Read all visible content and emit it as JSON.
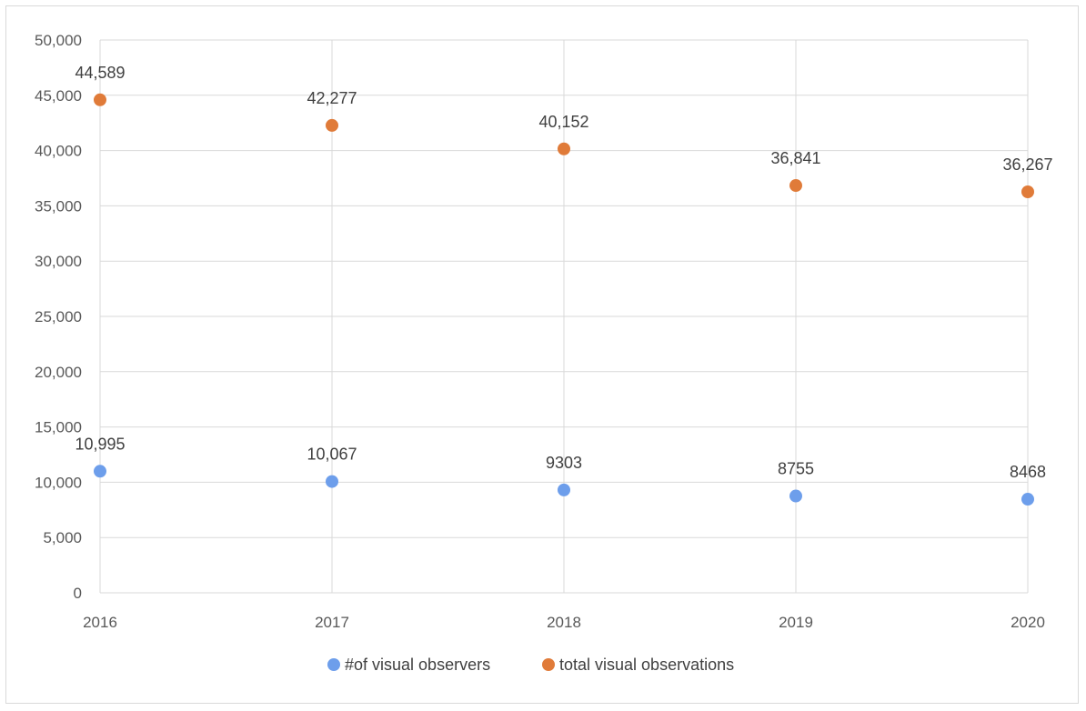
{
  "chart_data": {
    "type": "scatter",
    "x": [
      2016,
      2017,
      2018,
      2019,
      2020
    ],
    "x_tick_labels": [
      "2016",
      "2017",
      "2018",
      "2019",
      "2020"
    ],
    "xlim": [
      2016,
      2020
    ],
    "ylim": [
      0,
      50000
    ],
    "y_tick_labels": [
      "0",
      "5,000",
      "10,000",
      "15,000",
      "20,000",
      "25,000",
      "30,000",
      "35,000",
      "40,000",
      "45,000",
      "50,000"
    ],
    "y_ticks": [
      0,
      5000,
      10000,
      15000,
      20000,
      25000,
      30000,
      35000,
      40000,
      45000,
      50000
    ],
    "grid": true,
    "legend_position": "bottom",
    "series": [
      {
        "name": "#of visual observers",
        "color": "#6d9eeb",
        "values": [
          10995,
          10067,
          9303,
          8755,
          8468
        ],
        "labels": [
          "10,995",
          "10,067",
          "9303",
          "8755",
          "8468"
        ]
      },
      {
        "name": "total visual observations",
        "color": "#e07b39",
        "values": [
          44589,
          42277,
          40152,
          36841,
          36267
        ],
        "labels": [
          "44,589",
          "42,277",
          "40,152",
          "36,841",
          "36,267"
        ]
      }
    ]
  }
}
